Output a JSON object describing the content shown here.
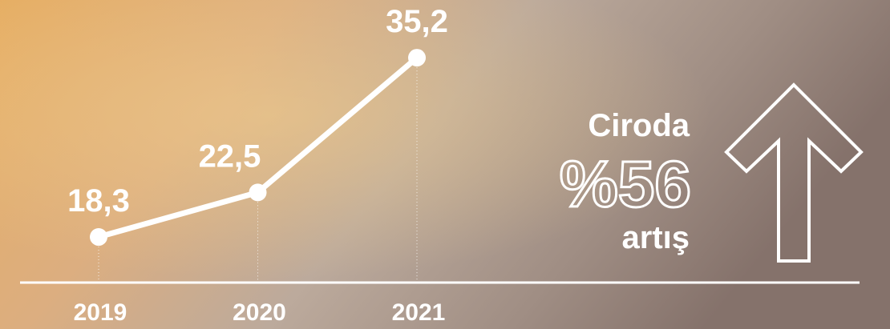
{
  "chart_data": {
    "type": "line",
    "categories": [
      "2019",
      "2020",
      "2021"
    ],
    "values": [
      18.3,
      22.5,
      35.2
    ],
    "value_labels": [
      "18,3",
      "22,5",
      "35,2"
    ],
    "color": "#ffffff",
    "ylim": [
      14,
      36
    ],
    "annotations": [
      "Ciroda",
      "%56",
      "artış"
    ]
  }
}
